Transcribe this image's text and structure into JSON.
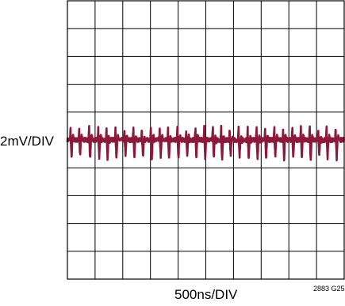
{
  "chart_data": {
    "type": "line",
    "title": "",
    "xlabel": "500ns/DIV",
    "ylabel": "2mV/DIV",
    "figure_id": "2883 G25",
    "grid": true,
    "x_divisions": 10,
    "y_divisions": 10,
    "xlim_div": [
      0,
      10
    ],
    "ylim_div": [
      -5,
      5
    ],
    "trace_color": "#8b1a3a",
    "series": [
      {
        "baseline_div": 0,
        "noise_div": 0.08,
        "spike_amplitude_div": 0.6,
        "spike_period_div": 0.33,
        "x_div": [
          0.12,
          0.43,
          0.79,
          1.12,
          1.42,
          1.74,
          2.07,
          2.39,
          2.7,
          3.02,
          3.34,
          3.64,
          3.98,
          4.3,
          4.63,
          4.95,
          5.26,
          5.56,
          5.87,
          6.19,
          6.52,
          6.84,
          7.15,
          7.48,
          7.8,
          8.13,
          8.44,
          8.76,
          9.07,
          9.37,
          9.7
        ],
        "y_div": [
          0.5,
          0.45,
          0.55,
          0.5,
          0.6,
          0.5,
          0.45,
          0.55,
          0.5,
          0.6,
          0.45,
          0.5,
          0.55,
          0.45,
          0.5,
          0.6,
          0.5,
          0.55,
          0.45,
          0.5,
          0.55,
          0.6,
          0.5,
          0.45,
          0.55,
          0.5,
          0.5,
          0.6,
          0.45,
          0.5,
          0.55
        ]
      }
    ]
  }
}
